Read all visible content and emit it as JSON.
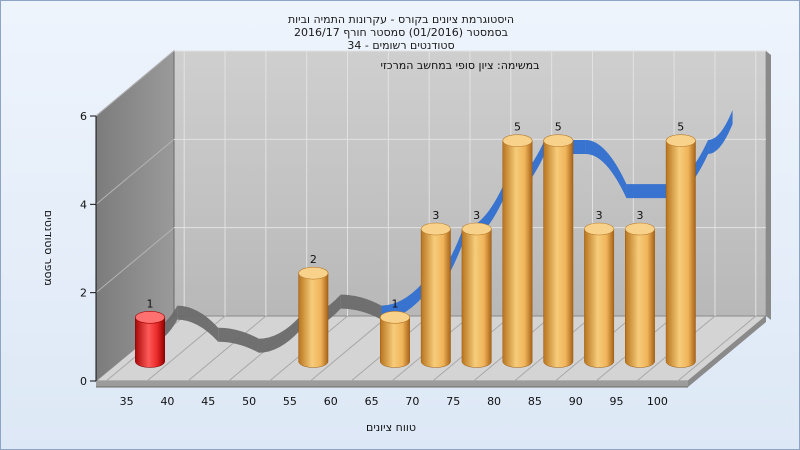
{
  "chart_data": {
    "type": "bar",
    "title_lines": [
      "היסטוגרמת ציונים בקורס - עקרונות התמיה וביות",
      "בסמסטר  (01/2016)  סמסטר חורף 2016/17",
      "סטודנטים רשומים - 34"
    ],
    "subtitle": "במשימה: ציון סופי במחשב המרכזי",
    "xlabel": "טווח ציונים",
    "ylabel": "מספר סטודנטים",
    "categories": [
      "35",
      "40",
      "45",
      "50",
      "55",
      "60",
      "65",
      "70",
      "75",
      "80",
      "85",
      "90",
      "95",
      "100"
    ],
    "values": [
      1,
      0,
      0,
      0,
      2,
      0,
      1,
      3,
      3,
      5,
      5,
      3,
      3,
      5
    ],
    "data_labels": [
      "1",
      "",
      "",
      "",
      "2",
      "",
      "1",
      "3",
      "3",
      "5",
      "5",
      "3",
      "3",
      "5"
    ],
    "highlight_index": 0,
    "y_ticks": [
      "0",
      "2",
      "4",
      "6"
    ],
    "ylim": [
      0,
      6
    ],
    "grid": true,
    "colors": {
      "bar": "#e8a43c",
      "bar_highlight": "#e01818",
      "trend_low": "#6a6a6a",
      "trend_high": "#2f6fd0",
      "wall": "#8a8a8a",
      "plot_back": "#c4c4c4"
    }
  }
}
